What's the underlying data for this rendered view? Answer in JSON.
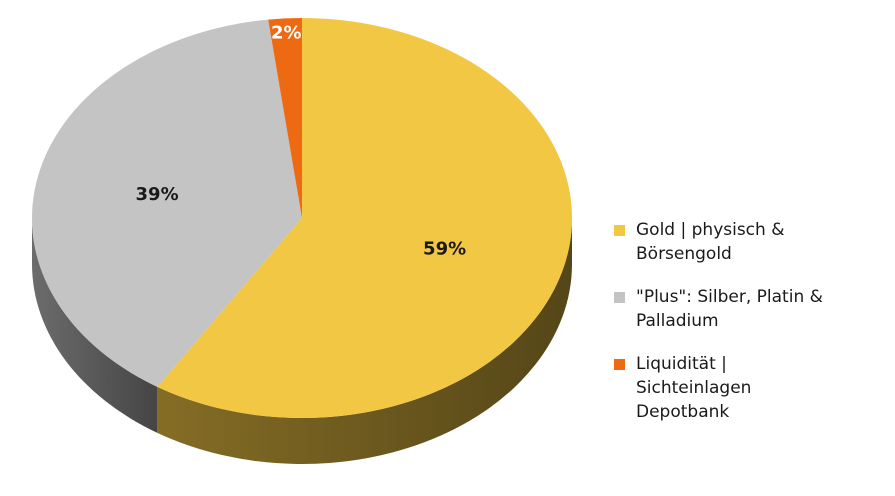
{
  "chart_data": {
    "type": "pie",
    "style": "3d",
    "title": "",
    "slices": [
      {
        "name": "Gold | physisch & Börsengold",
        "value": 59,
        "label": "59%",
        "color": "#F2C744",
        "label_color": "#1a1a1a"
      },
      {
        "name": "\"Plus\": Silber, Platin & Palladium",
        "value": 39,
        "label": "39%",
        "color": "#C4C4C4",
        "label_color": "#1a1a1a"
      },
      {
        "name": "Liquidität | Sichteinlagen Depotbank",
        "value": 2,
        "label": "2%",
        "color": "#EE6A12",
        "label_color": "#ffffff"
      }
    ],
    "legend": {
      "position": "right",
      "lines": [
        [
          "Gold | physisch &",
          "Börsengold"
        ],
        [
          "\"Plus\": Silber, Platin &",
          "Palladium"
        ],
        [
          "Liquidität |",
          "Sichteinlagen",
          "Depotbank"
        ]
      ]
    }
  }
}
